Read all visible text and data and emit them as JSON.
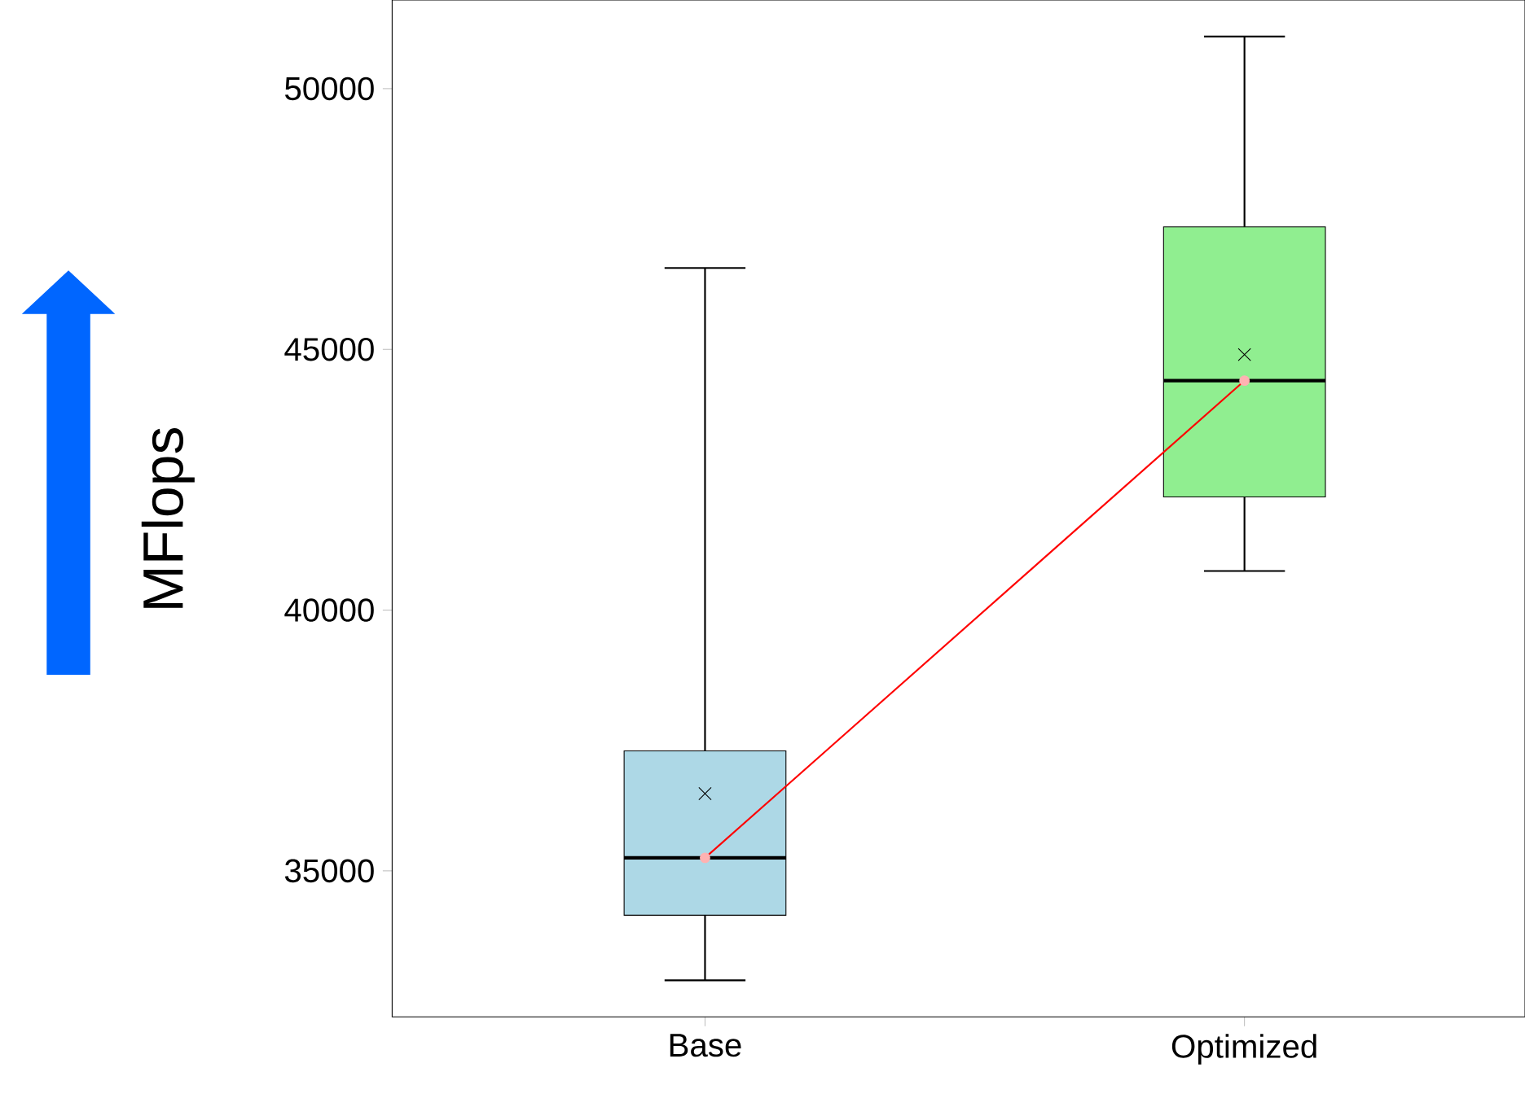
{
  "chart_data": {
    "type": "box",
    "ylabel": "MFlops",
    "categories": [
      "Base",
      "Optimized"
    ],
    "colors": [
      "#add8e6",
      "#90ee90"
    ],
    "boxes": [
      {
        "low": 32900,
        "q1": 34150,
        "median": 35250,
        "q3": 37300,
        "high": 46560,
        "mean": 36480
      },
      {
        "low": 40750,
        "q1": 42170,
        "median": 44400,
        "q3": 47350,
        "high": 51000,
        "mean": 44900
      }
    ],
    "series": [
      {
        "type": "line",
        "color": "#ff0000",
        "values": [
          35250,
          44400
        ],
        "marker": "circle"
      }
    ],
    "ylim": [
      32200,
      51700
    ],
    "yticks": [
      35000,
      40000,
      45000,
      50000
    ]
  }
}
